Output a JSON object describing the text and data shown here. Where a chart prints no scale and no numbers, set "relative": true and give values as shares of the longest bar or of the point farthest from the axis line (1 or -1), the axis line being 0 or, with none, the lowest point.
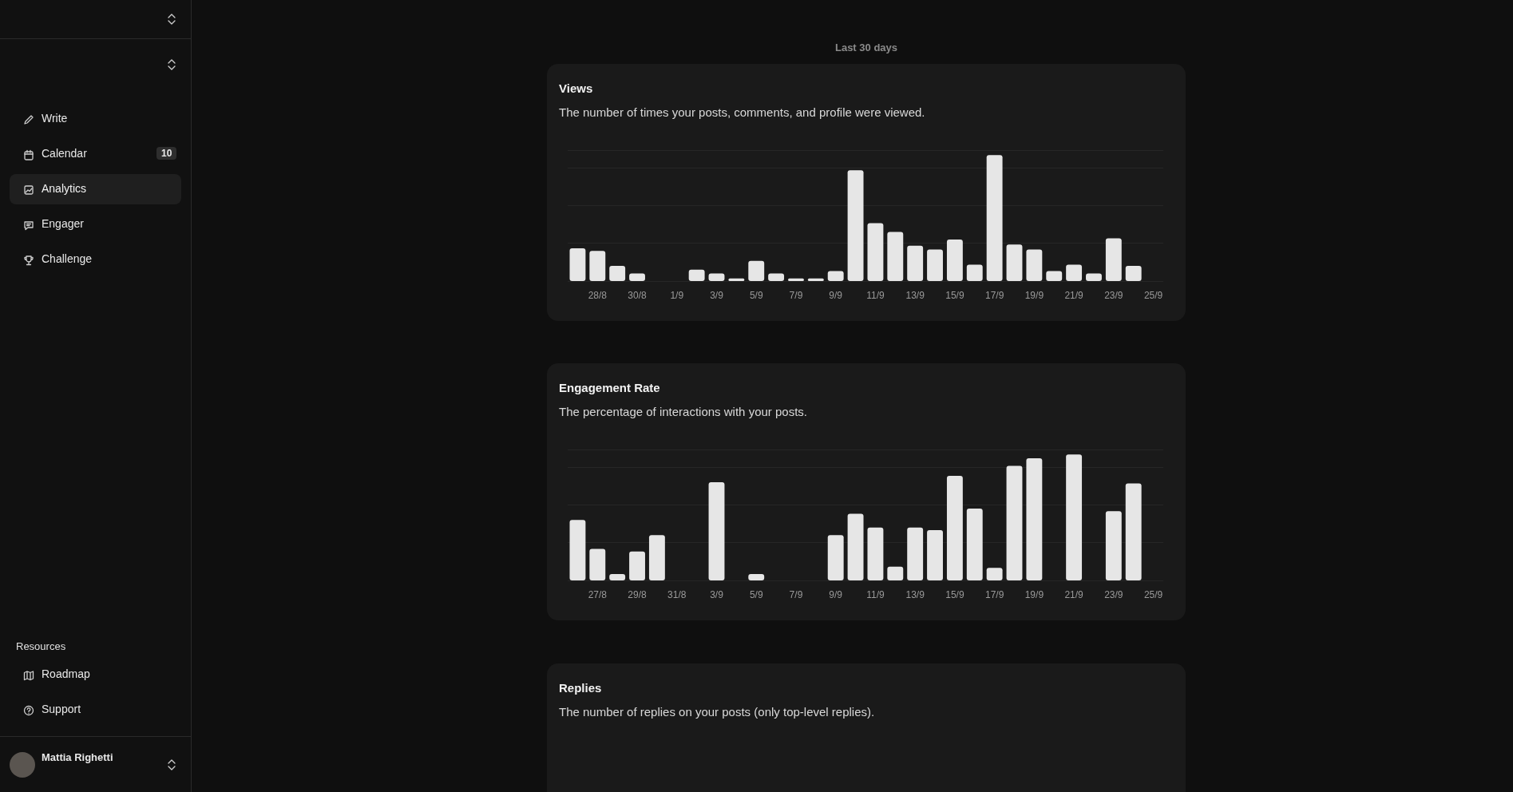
{
  "chart_data": [
    {
      "type": "other",
      "annotations": [
        "Write",
        "Calendar",
        "10",
        "Analytics",
        "Engager",
        "Challenge",
        "Resources",
        "Roadmap",
        "Support",
        "Mattia Righetti"
      ]
    },
    {
      "type": "bar",
      "title": "Views",
      "subtitle": "The number of times your posts, comments, and profile were viewed.",
      "annotations": [
        "Last 30 days"
      ],
      "relative": true,
      "grid": "y",
      "color": "#e6e6e6",
      "categories": [
        null,
        "28/8",
        null,
        "30/8",
        null,
        "1/9",
        null,
        "3/9",
        null,
        "5/9",
        null,
        "7/9",
        null,
        "9/9",
        null,
        "11/9",
        null,
        "13/9",
        null,
        "15/9",
        null,
        "17/9",
        null,
        "19/9",
        null,
        "21/9",
        null,
        "23/9",
        null,
        "25/9"
      ],
      "values": [
        0.26,
        0.24,
        0.12,
        0.06,
        0,
        0,
        0.09,
        0.06,
        0.02,
        0.16,
        0.06,
        0.02,
        0.02,
        0.08,
        0.88,
        0.46,
        0.39,
        0.28,
        0.25,
        0.33,
        0.13,
        1,
        0.29,
        0.25,
        0.08,
        0.13,
        0.06,
        0.34,
        0.12,
        0
      ]
    },
    {
      "type": "bar",
      "title": "Engagement Rate",
      "subtitle": "The percentage of interactions with your posts.",
      "relative": true,
      "grid": "y",
      "color": "#e6e6e6",
      "categories": [
        null,
        "27/8",
        null,
        "29/8",
        null,
        "31/8",
        null,
        "3/9",
        null,
        "5/9",
        null,
        "7/9",
        null,
        "9/9",
        null,
        "11/9",
        null,
        "13/9",
        null,
        "15/9",
        null,
        "17/9",
        null,
        "19/9",
        null,
        "21/9",
        null,
        "23/9",
        null,
        "25/9"
      ],
      "values": [
        0.48,
        0.25,
        0.05,
        0.23,
        0.36,
        0,
        0,
        0.78,
        0,
        0.05,
        0,
        0,
        0,
        0.36,
        0.53,
        0.42,
        0.11,
        0.42,
        0.4,
        0.83,
        0.57,
        0.1,
        0.91,
        0.97,
        0,
        1,
        0,
        0.55,
        0.77,
        0
      ]
    },
    {
      "type": "other",
      "title": "Replies",
      "subtitle": "The number of replies on your posts (only top-level replies)."
    }
  ]
}
